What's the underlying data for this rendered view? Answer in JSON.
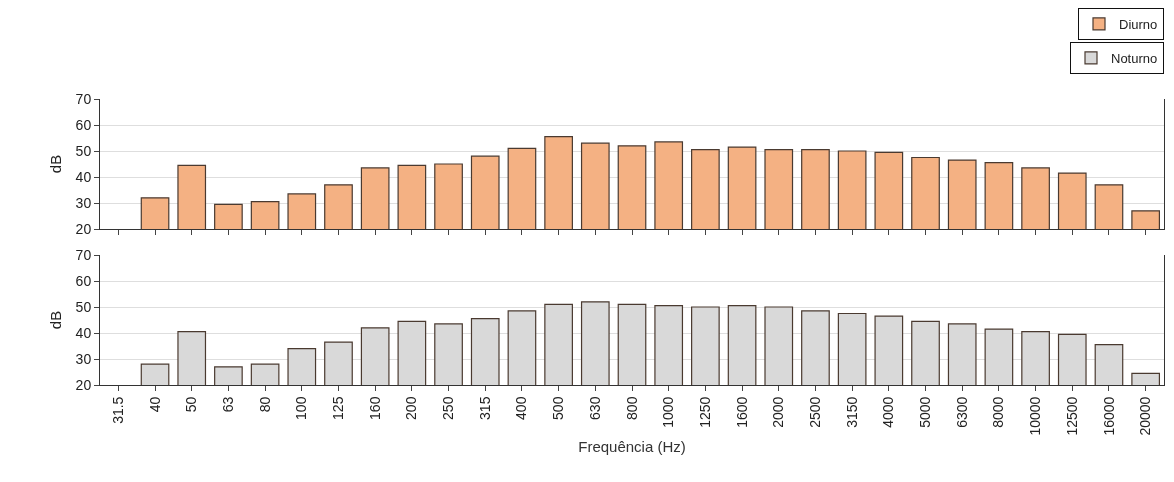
{
  "chart_data": [
    {
      "type": "bar",
      "ylabel": "dB",
      "categories": [
        "31.5",
        "40",
        "50",
        "63",
        "80",
        "100",
        "125",
        "160",
        "200",
        "250",
        "315",
        "400",
        "500",
        "630",
        "800",
        "1000",
        "1250",
        "1600",
        "2000",
        "2500",
        "3150",
        "4000",
        "5000",
        "6300",
        "8000",
        "10000",
        "12500",
        "16000",
        "20000"
      ],
      "series": [
        {
          "name": "Diurno",
          "color": "#f4b183",
          "values": [
            null,
            32,
            44.5,
            29.5,
            30.5,
            33.5,
            37,
            43.5,
            44.5,
            45,
            48,
            51,
            55.5,
            53,
            52,
            53.5,
            50.5,
            51.5,
            50.5,
            50.5,
            50,
            49.5,
            47.5,
            46.5,
            45.5,
            43.5,
            41.5,
            37,
            27
          ]
        }
      ],
      "ylim": [
        20,
        70
      ],
      "yticks": [
        20,
        30,
        40,
        50,
        60,
        70
      ],
      "grid": "y",
      "legend": "top right",
      "tick_labels": "y"
    },
    {
      "type": "bar",
      "ylabel": "dB",
      "xlabel": "Frequência (Hz)",
      "categories": [
        "31.5",
        "40",
        "50",
        "63",
        "80",
        "100",
        "125",
        "160",
        "200",
        "250",
        "315",
        "400",
        "500",
        "630",
        "800",
        "1000",
        "1250",
        "1600",
        "2000",
        "2500",
        "3150",
        "4000",
        "5000",
        "6300",
        "8000",
        "10000",
        "12500",
        "16000",
        "20000"
      ],
      "series": [
        {
          "name": "Noturno",
          "color": "#d9d9d9",
          "values": [
            null,
            28,
            40.5,
            27,
            28,
            34,
            36.5,
            42,
            44.5,
            43.5,
            45.5,
            48.5,
            51,
            52,
            51,
            50.5,
            50,
            50.5,
            50,
            48.5,
            47.5,
            46.5,
            44.5,
            43.5,
            41.5,
            40.5,
            39.5,
            35.5,
            24.5
          ]
        }
      ],
      "ylim": [
        20,
        70
      ],
      "yticks": [
        20,
        30,
        40,
        50,
        60,
        70
      ],
      "grid": "y",
      "legend": "top right"
    }
  ]
}
